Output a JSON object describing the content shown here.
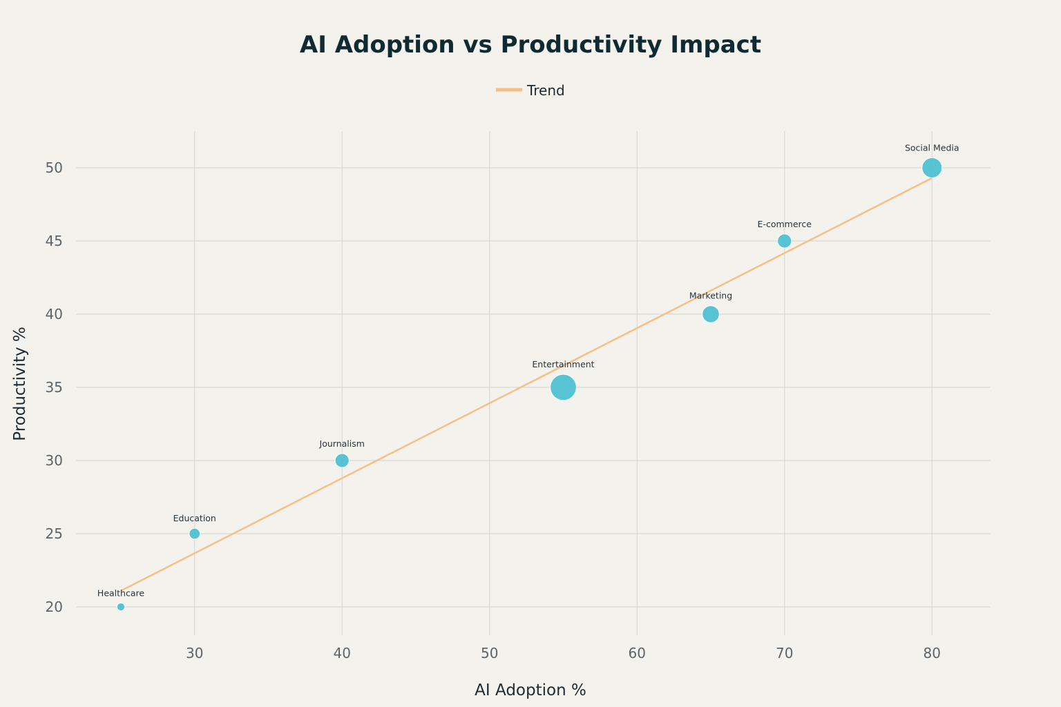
{
  "chart_data": {
    "type": "scatter",
    "title": "AI Adoption vs Productivity Impact",
    "xlabel": "AI Adoption %",
    "ylabel": "Productivity %",
    "xlim": [
      22,
      84
    ],
    "ylim": [
      17.5,
      52.5
    ],
    "xticks": [
      30,
      40,
      50,
      60,
      70,
      80
    ],
    "yticks": [
      20,
      25,
      30,
      35,
      40,
      45,
      50
    ],
    "grid": true,
    "legend_position": "top-center",
    "points": [
      {
        "label": "Healthcare",
        "x": 25,
        "y": 20,
        "size": 1
      },
      {
        "label": "Education",
        "x": 30,
        "y": 25,
        "size": 2
      },
      {
        "label": "Journalism",
        "x": 40,
        "y": 30,
        "size": 3
      },
      {
        "label": "Entertainment",
        "x": 55,
        "y": 35,
        "size": 7
      },
      {
        "label": "Marketing",
        "x": 65,
        "y": 40,
        "size": 4
      },
      {
        "label": "E-commerce",
        "x": 70,
        "y": 45,
        "size": 3
      },
      {
        "label": "Social Media",
        "x": 80,
        "y": 50,
        "size": 5
      }
    ],
    "trend": {
      "name": "Trend",
      "x": [
        25,
        80
      ],
      "y": [
        21.1,
        49.3
      ]
    },
    "colors": {
      "points": "#4bbfd0",
      "trend": "#f7bf86",
      "background": "#f3f2ec"
    }
  }
}
